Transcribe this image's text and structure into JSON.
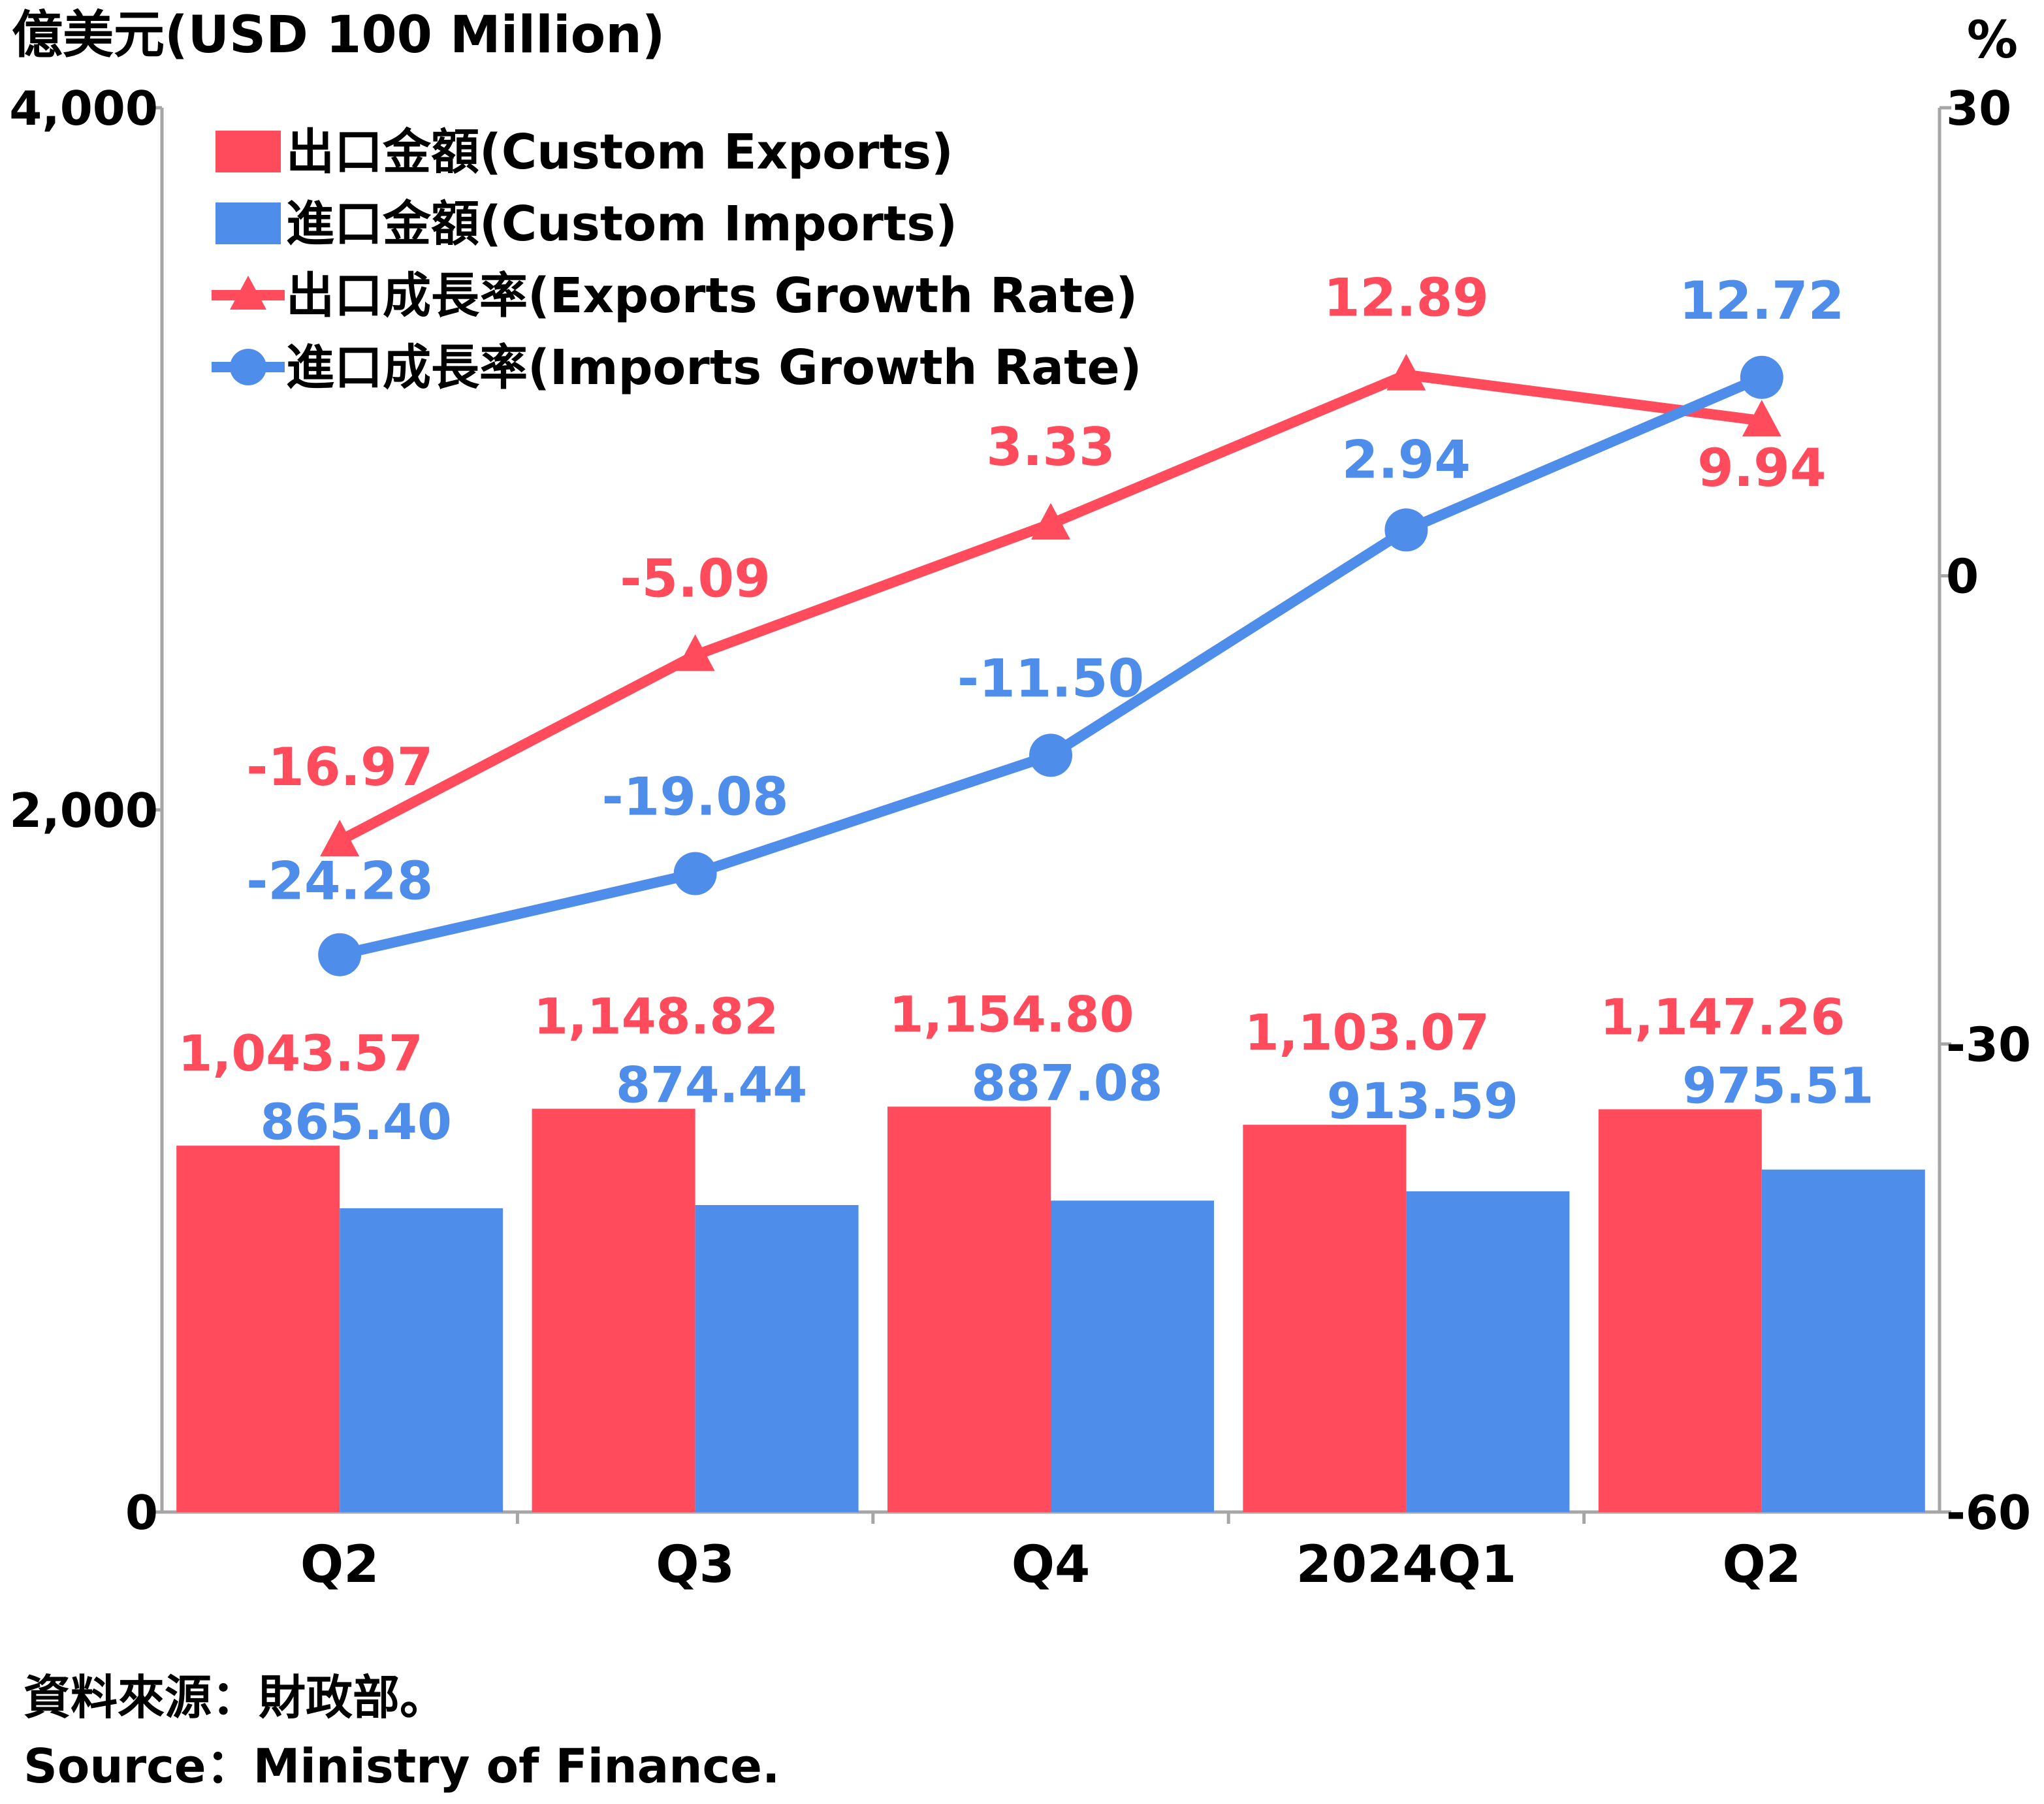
{
  "chart_data": {
    "type": "bar+line",
    "categories": [
      "Q2",
      "Q3",
      "Q4",
      "2024Q1",
      "Q2"
    ],
    "left_axis": {
      "label": "億美元(USD 100 Million)",
      "ylim": [
        0,
        4000
      ],
      "ticks": [
        "0",
        "2,000",
        "4,000"
      ],
      "tick_values": [
        0,
        2000,
        4000
      ]
    },
    "right_axis": {
      "label": "%",
      "ylim": [
        -60,
        30
      ],
      "ticks": [
        "-60",
        "-30",
        "0",
        "30"
      ],
      "tick_values": [
        -60,
        -30,
        0,
        30
      ]
    },
    "bar_series": [
      {
        "name": "出口金額(Custom Exports)",
        "color": "#FF4B5C",
        "values": [
          1043.57,
          1148.82,
          1154.8,
          1103.07,
          1147.26
        ],
        "labels": [
          "1,043.57",
          "1,148.82",
          "1,154.80",
          "1,103.07",
          "1,147.26"
        ]
      },
      {
        "name": "進口金額(Custom Imports)",
        "color": "#4F8DEB",
        "values": [
          865.4,
          874.44,
          887.08,
          913.59,
          975.51
        ],
        "labels": [
          "865.40",
          "874.44",
          "887.08",
          "913.59",
          "975.51"
        ]
      }
    ],
    "line_series": [
      {
        "name": "出口成長率(Exports Growth Rate)",
        "color": "#FF4B5C",
        "marker": "triangle",
        "values": [
          -16.97,
          -5.09,
          3.33,
          12.89,
          9.94
        ],
        "labels": [
          "-16.97",
          "-5.09",
          "3.33",
          "12.89",
          "9.94"
        ]
      },
      {
        "name": "進口成長率(Imports Growth Rate)",
        "color": "#4F8DEB",
        "marker": "circle",
        "values": [
          -24.28,
          -19.08,
          -11.5,
          2.94,
          12.72
        ],
        "labels": [
          "-24.28",
          "-19.08",
          "-11.50",
          "2.94",
          "12.72"
        ]
      }
    ],
    "legend": "top-left",
    "grid": false
  },
  "source": {
    "zh": "資料來源：財政部。",
    "en": "Source：Ministry of Finance."
  }
}
